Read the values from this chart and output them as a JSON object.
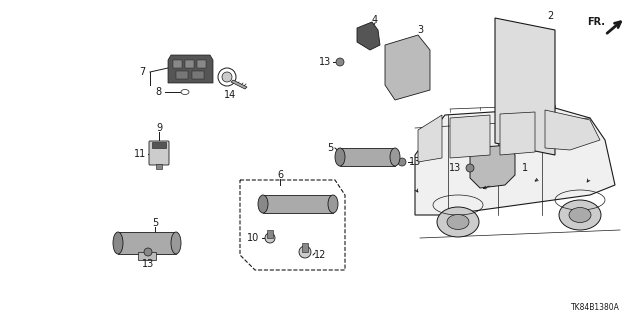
{
  "background_color": "#ffffff",
  "line_color": "#1a1a1a",
  "fig_width": 6.4,
  "fig_height": 3.2,
  "dpi": 100,
  "diagram_code": "TK84B1380A",
  "fr_label": "FR.",
  "lw": 0.7
}
